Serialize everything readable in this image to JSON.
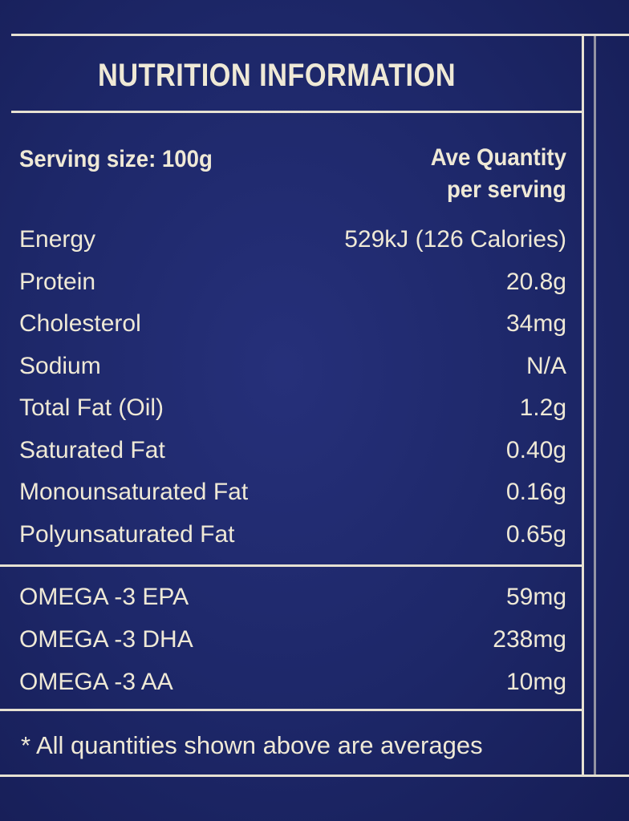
{
  "header": {
    "title": "NUTRITION INFORMATION",
    "serving_size": "Serving size: 100g",
    "quantity_heading": [
      "Ave Quantity",
      "per serving"
    ]
  },
  "table": {
    "rows": [
      [
        "Energy",
        "529kJ (126 Calories)"
      ],
      [
        "Protein",
        "20.8g"
      ],
      [
        "Cholesterol",
        "34mg"
      ],
      [
        "Sodium",
        "N/A"
      ],
      [
        "Total Fat (Oil)",
        "1.2g"
      ],
      [
        "Saturated Fat",
        "0.40g"
      ],
      [
        "Monounsaturated Fat",
        "0.16g"
      ],
      [
        "Polyunsaturated Fat",
        "0.65g"
      ]
    ]
  },
  "omega": {
    "rows": [
      [
        "OMEGA -3 EPA",
        "59mg"
      ],
      [
        "OMEGA -3 DHA",
        "238mg"
      ],
      [
        "OMEGA -3 AA",
        "10mg"
      ]
    ]
  },
  "footnote": "* All quantities shown above are averages"
}
